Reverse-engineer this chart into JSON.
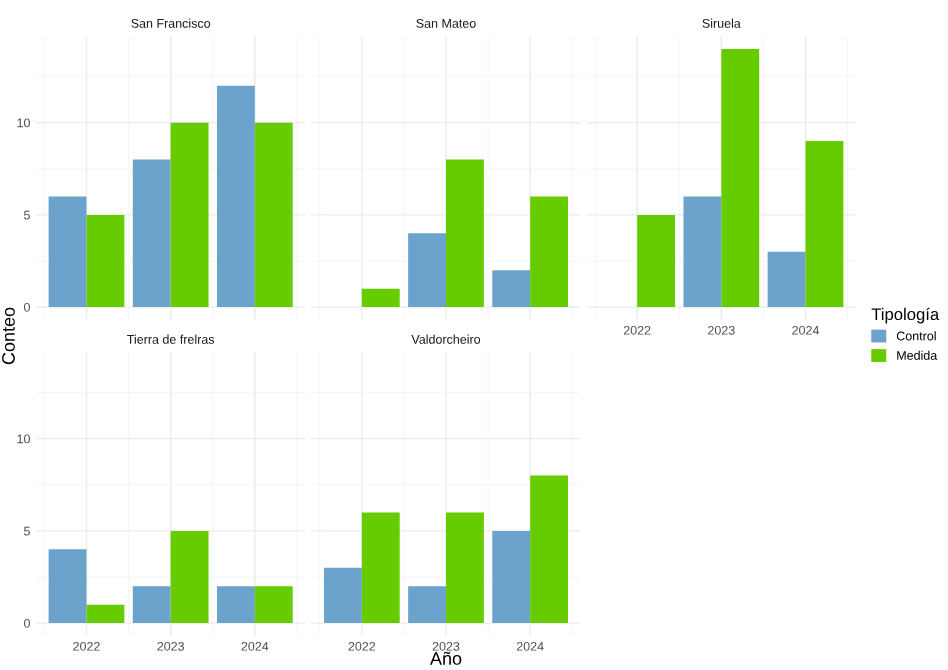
{
  "chart_data": [
    {
      "type": "bar",
      "title": "San Francisco",
      "ylabel": "Conteo",
      "categories": [
        "2022",
        "2023",
        "2024"
      ],
      "ylim": [
        -0.7,
        14.7
      ],
      "yticks": [
        0,
        5,
        10
      ],
      "grid": true,
      "tick_labels": "y",
      "series": [
        {
          "color": "#6ba3cd",
          "values": [
            6,
            8,
            12
          ]
        },
        {
          "color": "#66cc00",
          "values": [
            5,
            10,
            10
          ]
        }
      ]
    },
    {
      "type": "bar",
      "title": "San Mateo",
      "categories": [
        "2022",
        "2023",
        "2024"
      ],
      "ylim": [
        -0.7,
        14.7
      ],
      "yticks": [
        0,
        5,
        10
      ],
      "grid": true,
      "tick_labels": false,
      "series": [
        {
          "color": "#6ba3cd",
          "values": [
            0,
            4,
            2
          ]
        },
        {
          "color": "#66cc00",
          "values": [
            1,
            8,
            6
          ]
        }
      ]
    },
    {
      "type": "bar",
      "title": "Siruela",
      "legend_title": "Tipología",
      "legend": "right",
      "categories": [
        "2022",
        "2023",
        "2024"
      ],
      "ylim": [
        -0.7,
        14.7
      ],
      "yticks": [
        0,
        5,
        10
      ],
      "grid": true,
      "tick_labels": "x",
      "series": [
        {
          "name": "Control",
          "color": "#6ba3cd",
          "values": [
            0,
            6,
            3
          ]
        },
        {
          "name": "Medida",
          "color": "#66cc00",
          "values": [
            5,
            14,
            9
          ]
        }
      ]
    },
    {
      "type": "bar",
      "title": "Tierra de frelras",
      "categories": [
        "2022",
        "2023",
        "2024"
      ],
      "ylim": [
        -0.7,
        14.7
      ],
      "yticks": [
        0,
        5,
        10
      ],
      "grid": true,
      "series": [
        {
          "color": "#6ba3cd",
          "values": [
            4,
            2,
            2
          ]
        },
        {
          "color": "#66cc00",
          "values": [
            1,
            5,
            2
          ]
        }
      ]
    },
    {
      "type": "bar",
      "title": "Valdorcheiro",
      "xlabel": "Año",
      "categories": [
        "2022",
        "2023",
        "2024"
      ],
      "ylim": [
        -0.7,
        14.7
      ],
      "yticks": [
        0,
        5,
        10
      ],
      "grid": true,
      "tick_labels": "x",
      "series": [
        {
          "color": "#6ba3cd",
          "values": [
            3,
            2,
            5
          ]
        },
        {
          "color": "#66cc00",
          "values": [
            6,
            6,
            8
          ]
        }
      ]
    }
  ]
}
